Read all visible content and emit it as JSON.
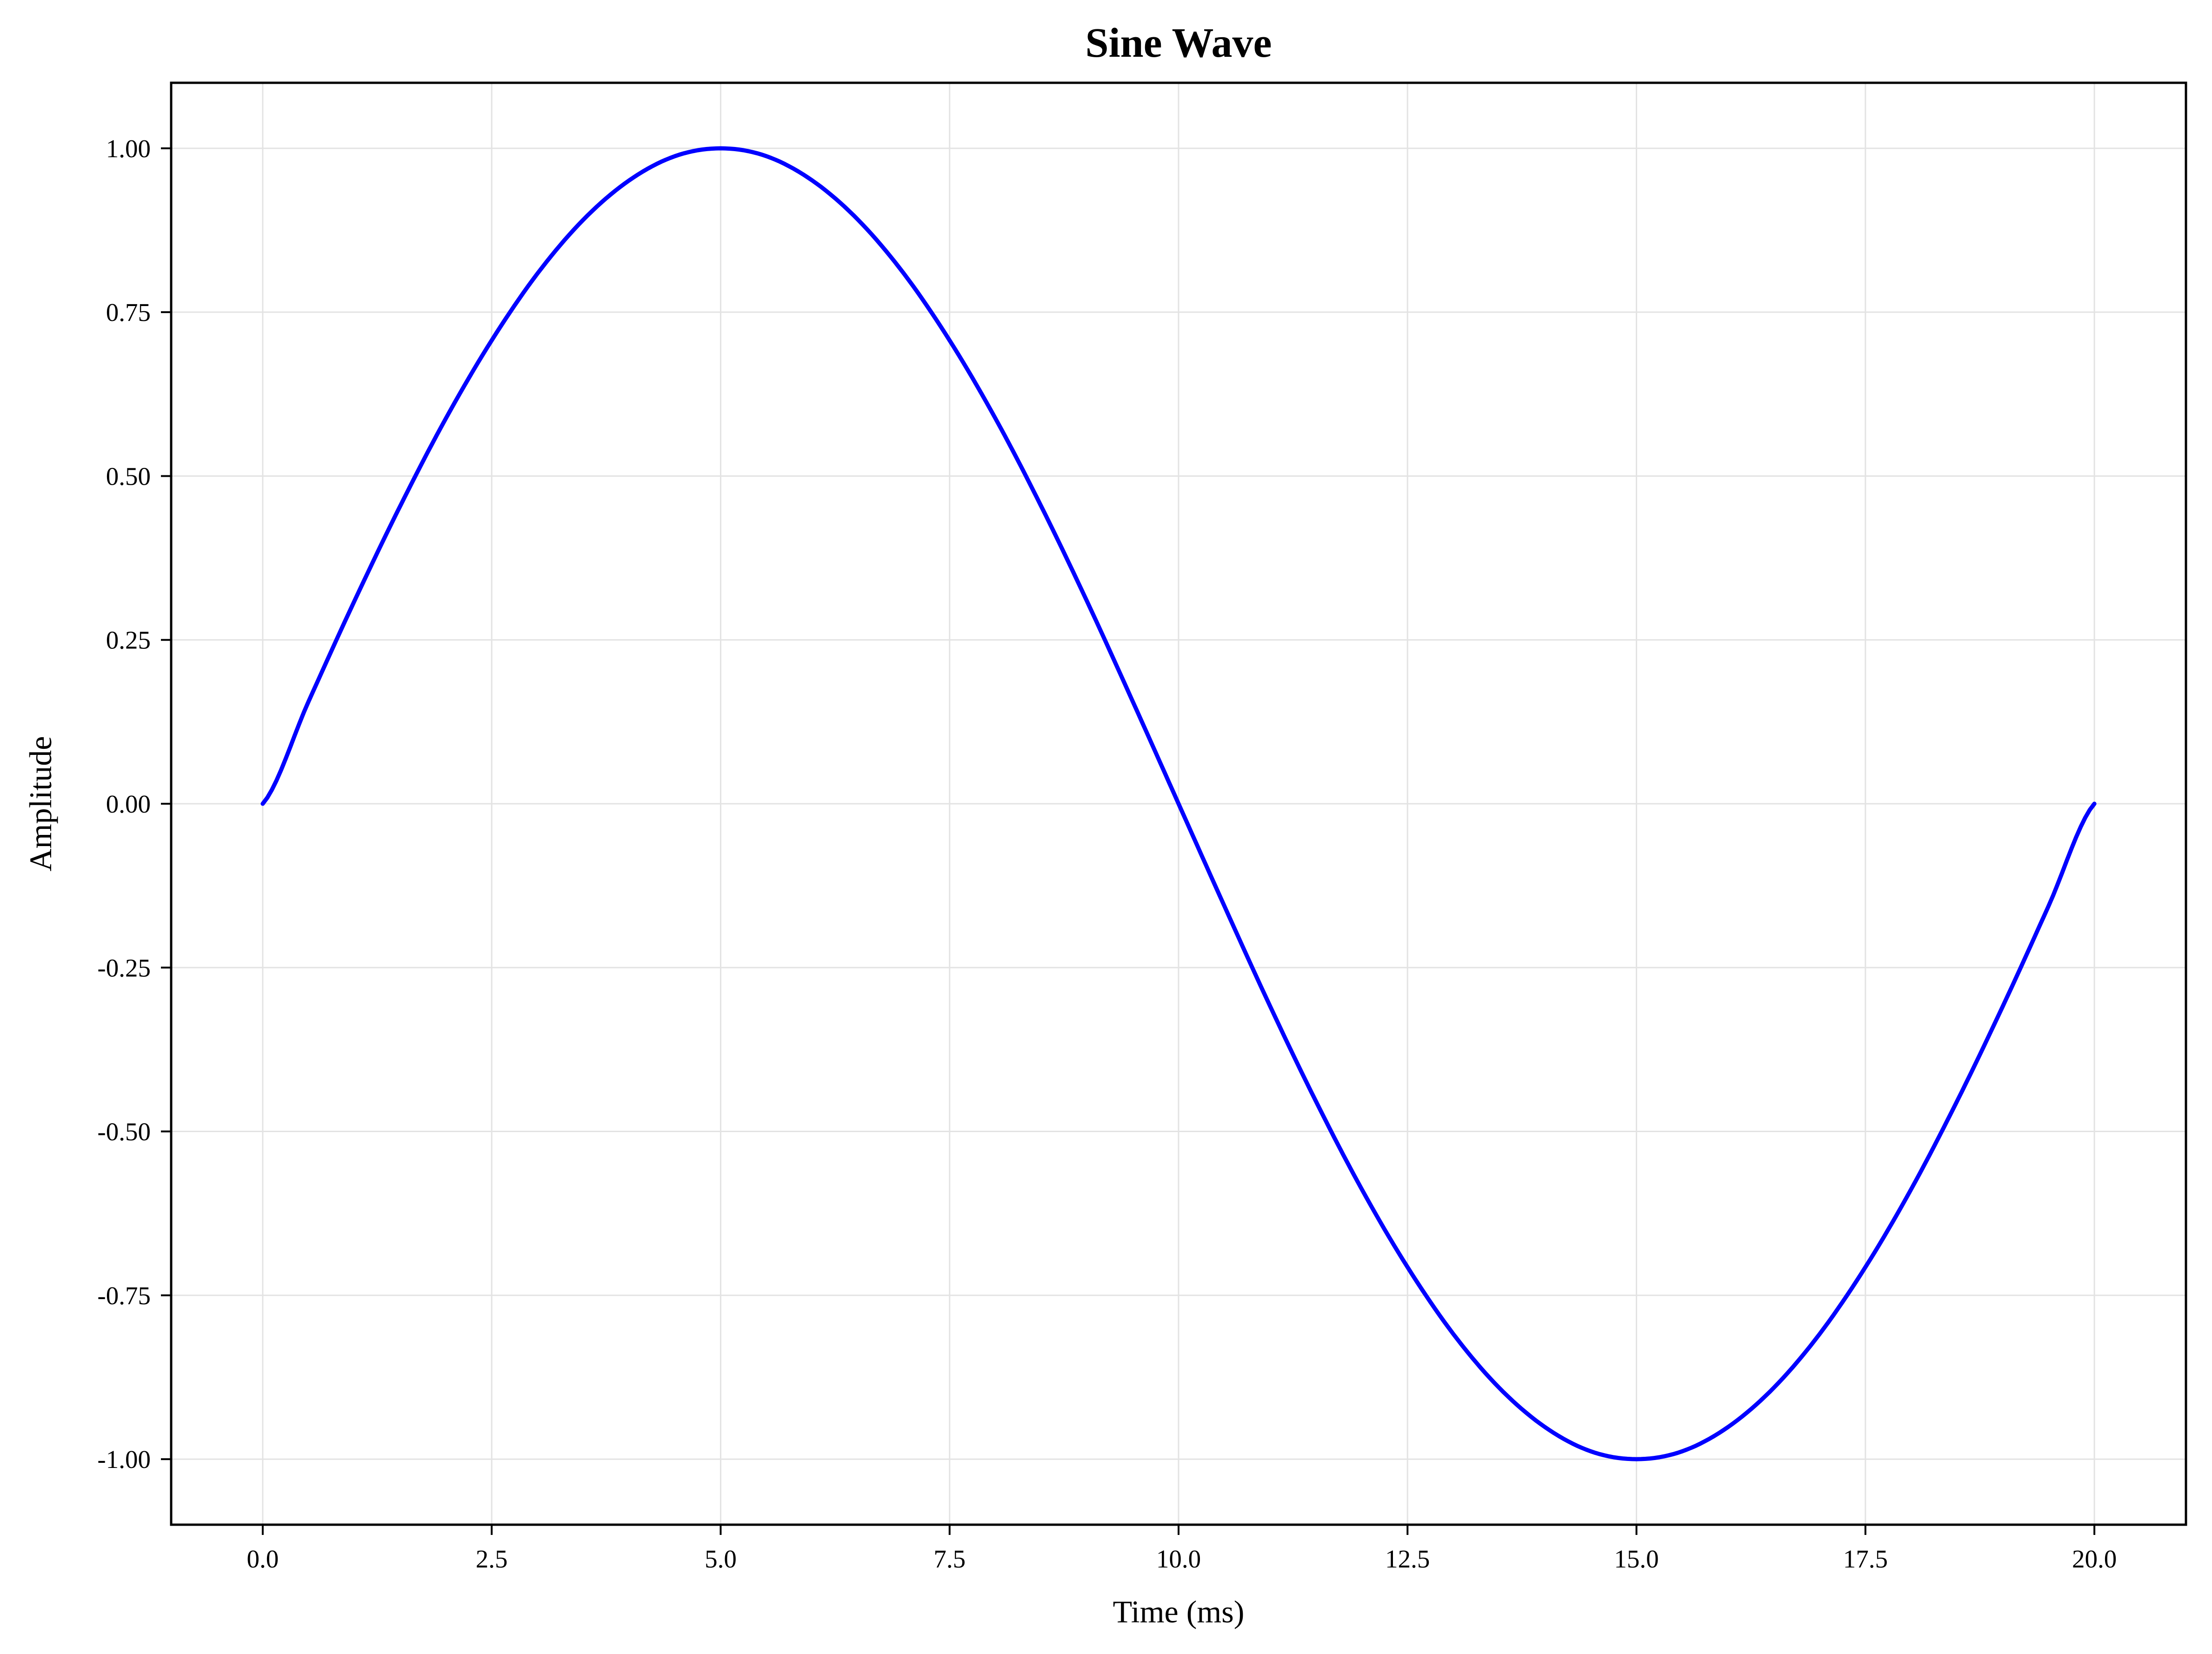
{
  "chart_data": {
    "type": "line",
    "title": "Sine Wave",
    "xlabel": "Time (ms)",
    "ylabel": "Amplitude",
    "xlim": [
      -1,
      21
    ],
    "ylim": [
      -1.1,
      1.1
    ],
    "x_ticks": [
      0.0,
      2.5,
      5.0,
      7.5,
      10.0,
      12.5,
      15.0,
      17.5,
      20.0
    ],
    "x_tick_labels": [
      "0.0",
      "2.5",
      "5.0",
      "7.5",
      "10.0",
      "12.5",
      "15.0",
      "17.5",
      "20.0"
    ],
    "y_ticks": [
      1.0,
      0.75,
      0.5,
      0.25,
      0.0,
      -0.25,
      -0.5,
      -0.75,
      -1.0
    ],
    "y_tick_labels": [
      "1.00",
      "0.75",
      "0.50",
      "0.25",
      "0.00",
      "-0.25",
      "-0.50",
      "-0.75",
      "-1.00"
    ],
    "grid": true,
    "line_color": "#0000ff",
    "series": [
      {
        "x": [
          0,
          0.5,
          1,
          1.5,
          2,
          2.5,
          3,
          3.5,
          4,
          4.5,
          5,
          5.5,
          6,
          6.5,
          7,
          7.5,
          8,
          8.5,
          9,
          9.5,
          10,
          10.5,
          11,
          11.5,
          12,
          12.5,
          13,
          13.5,
          14,
          14.5,
          15,
          15.5,
          16,
          16.5,
          17,
          17.5,
          18,
          18.5,
          19,
          19.5,
          20
        ],
        "values": [
          0.0,
          0.156,
          0.309,
          0.454,
          0.588,
          0.707,
          0.809,
          0.891,
          0.951,
          0.988,
          1.0,
          0.988,
          0.951,
          0.891,
          0.809,
          0.707,
          0.588,
          0.454,
          0.309,
          0.156,
          0.0,
          -0.156,
          -0.309,
          -0.454,
          -0.588,
          -0.707,
          -0.809,
          -0.891,
          -0.951,
          -0.988,
          -1.0,
          -0.988,
          -0.951,
          -0.891,
          -0.809,
          -0.707,
          -0.588,
          -0.454,
          -0.309,
          -0.156,
          0.0
        ]
      }
    ]
  }
}
